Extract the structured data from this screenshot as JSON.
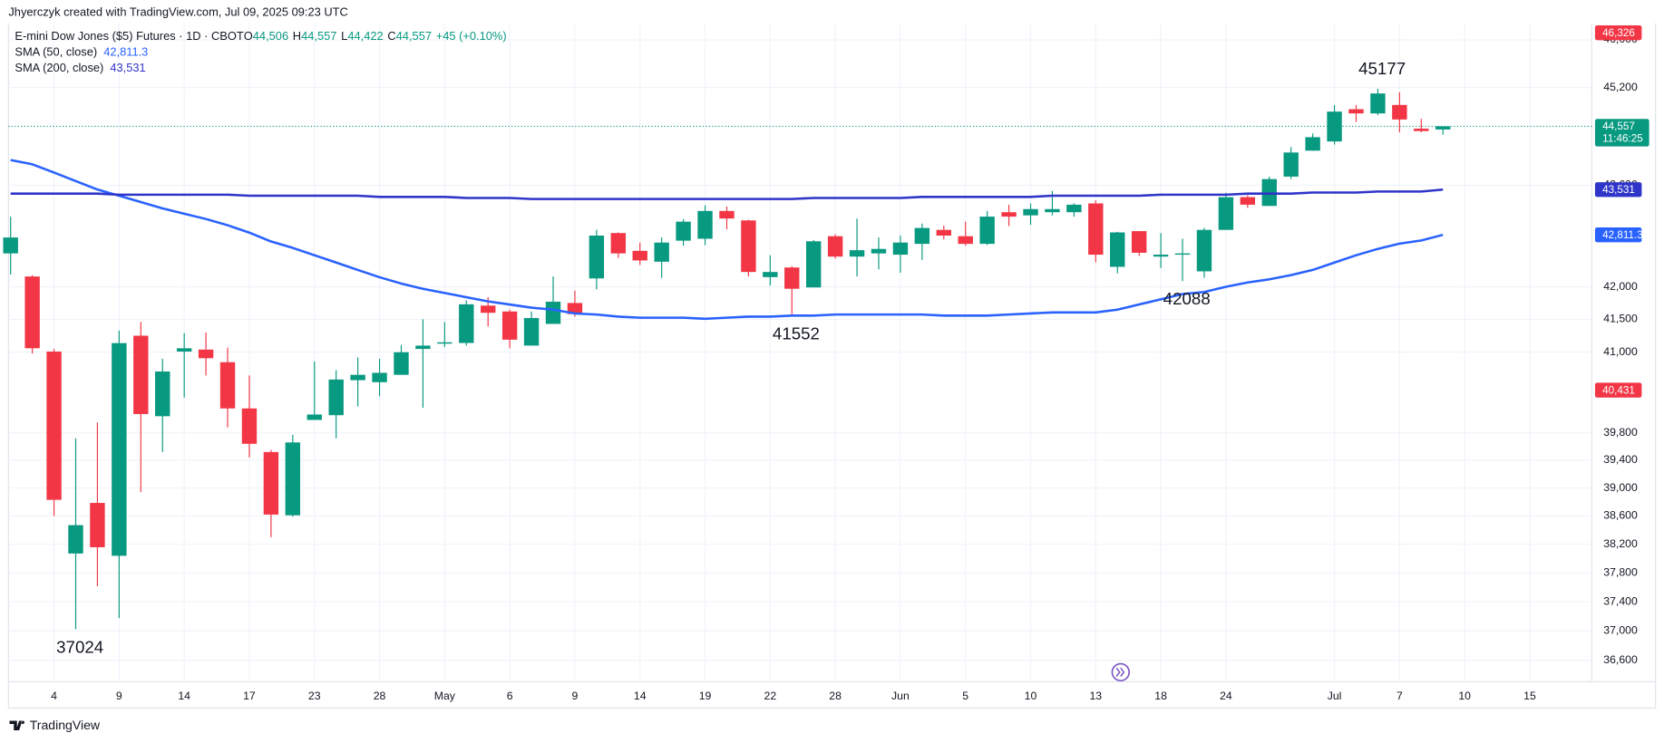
{
  "header": {
    "credit": "Jhyerczyk created with TradingView.com, Jul 09, 2025 09:23 UTC",
    "symbol": "E-mini Dow Jones ($5) Futures · 1D · CBOT",
    "ohlc": [
      {
        "key": "O",
        "value": "44,506"
      },
      {
        "key": "H",
        "value": "44,557"
      },
      {
        "key": "L",
        "value": "44,422"
      },
      {
        "key": "C",
        "value": "44,557"
      }
    ],
    "change": "+45 (+0.10%)"
  },
  "footer": {
    "brand": "TradingView"
  },
  "chart_data": {
    "type": "candlestick",
    "log_scale": true,
    "grid": true,
    "up_color": "#089981",
    "down_color": "#f23645",
    "ylim": [
      36300,
      46300
    ],
    "yticks": [
      {
        "value": 36600,
        "label": "36,600"
      },
      {
        "value": 37000,
        "label": "37,000"
      },
      {
        "value": 37400,
        "label": "37,400"
      },
      {
        "value": 37800,
        "label": "37,800"
      },
      {
        "value": 38200,
        "label": "38,200"
      },
      {
        "value": 38600,
        "label": "38,600"
      },
      {
        "value": 39000,
        "label": "39,000"
      },
      {
        "value": 39400,
        "label": "39,400"
      },
      {
        "value": 39800,
        "label": "39,800"
      },
      {
        "value": 41000,
        "label": "41,000"
      },
      {
        "value": 41500,
        "label": "41,500"
      },
      {
        "value": 42000,
        "label": "42,000"
      },
      {
        "value": 43600,
        "label": "43,600"
      },
      {
        "value": 45200,
        "label": "45,200"
      },
      {
        "value": 46000,
        "label": "46,000"
      }
    ],
    "categories": [
      null,
      null,
      "4",
      null,
      null,
      "9",
      null,
      null,
      "14",
      null,
      null,
      "17",
      null,
      null,
      "23",
      null,
      null,
      "28",
      null,
      null,
      "May",
      null,
      null,
      "6",
      null,
      null,
      "9",
      null,
      null,
      "14",
      null,
      null,
      "19",
      null,
      null,
      "22",
      null,
      null,
      "28",
      null,
      null,
      "Jun",
      null,
      null,
      "5",
      null,
      null,
      "10",
      null,
      null,
      "13",
      null,
      null,
      "18",
      null,
      null,
      "24",
      null,
      null,
      null,
      null,
      "Jul",
      null,
      null,
      "7",
      null,
      null,
      "10",
      null,
      null,
      "15"
    ],
    "open": [
      42520,
      42160,
      41010,
      38070,
      38786,
      38038,
      41250,
      40045,
      41010,
      41040,
      40850,
      40160,
      39520,
      38610,
      39990,
      40060,
      40580,
      40550,
      40660,
      41050,
      41130,
      41140,
      41710,
      41620,
      41100,
      41430,
      41750,
      42130,
      42840,
      42560,
      42390,
      42720,
      42750,
      43190,
      43040,
      42150,
      42300,
      41990,
      42790,
      42470,
      42520,
      42500,
      42670,
      42890,
      42790,
      42670,
      43170,
      43120,
      43170,
      43170,
      43310,
      42310,
      42870,
      42470,
      42500,
      42240,
      42890,
      43410,
      43270,
      43740,
      44160,
      44310,
      44840,
      44770,
      44910,
      44520,
      44506,
      null,
      null,
      null,
      null
    ],
    "high": [
      43100,
      42180,
      41050,
      39720,
      39952,
      41330,
      41460,
      40900,
      41290,
      41300,
      41070,
      40650,
      39550,
      39770,
      40860,
      40730,
      40920,
      40900,
      41110,
      41500,
      41460,
      41790,
      41840,
      41650,
      41620,
      42160,
      41940,
      42890,
      42850,
      42690,
      42770,
      43060,
      43280,
      43260,
      43050,
      42490,
      42320,
      42730,
      42820,
      43070,
      42770,
      42800,
      42990,
      42960,
      43020,
      43190,
      43290,
      43310,
      43510,
      43310,
      43360,
      42860,
      42870,
      42840,
      42750,
      42920,
      43480,
      43440,
      43740,
      44220,
      44440,
      44910,
      44910,
      45177,
      45120,
      44680,
      44557,
      null,
      null,
      null,
      null
    ],
    "low": [
      42190,
      40980,
      38600,
      37024,
      37613,
      37175,
      38940,
      39520,
      40320,
      40650,
      39880,
      39440,
      38300,
      38590,
      39990,
      39720,
      40190,
      40340,
      40660,
      40170,
      41080,
      41100,
      41390,
      41060,
      41100,
      41430,
      41540,
      41960,
      42450,
      42340,
      42140,
      42640,
      42650,
      42900,
      42160,
      42020,
      41552,
      41990,
      42440,
      42160,
      42270,
      42220,
      42420,
      42740,
      42640,
      42650,
      42950,
      42970,
      43120,
      43100,
      42380,
      42210,
      42480,
      42290,
      42088,
      42140,
      42890,
      43240,
      43270,
      43700,
      44160,
      44260,
      44630,
      44740,
      44460,
      44460,
      44422,
      null,
      null,
      null,
      null
    ],
    "close": [
      42770,
      41060,
      38830,
      38470,
      38158,
      41138,
      40077,
      40710,
      41060,
      40910,
      40160,
      39640,
      38620,
      39660,
      40070,
      40590,
      40660,
      40690,
      41000,
      41100,
      41150,
      41730,
      41600,
      41190,
      41520,
      41770,
      41580,
      42800,
      42520,
      42410,
      42690,
      43020,
      43190,
      43070,
      42230,
      42230,
      41970,
      42710,
      42470,
      42570,
      42590,
      42690,
      42920,
      42800,
      42670,
      43100,
      43100,
      43220,
      43220,
      43290,
      42500,
      42850,
      42530,
      42500,
      42520,
      42890,
      43410,
      43290,
      43700,
      44130,
      44380,
      44800,
      44770,
      45100,
      44670,
      44480,
      44557,
      null,
      null,
      null,
      null
    ],
    "series": [
      {
        "name": "SMA (50, close)",
        "color": "#2962ff",
        "value_label": "42,811.3",
        "values": [
          44008,
          43940,
          43804,
          43669,
          43533,
          43432,
          43331,
          43230,
          43146,
          43063,
          42963,
          42847,
          42707,
          42607,
          42492,
          42377,
          42262,
          42148,
          42050,
          41969,
          41904,
          41840,
          41775,
          41727,
          41679,
          41647,
          41590,
          41573,
          41541,
          41525,
          41525,
          41525,
          41509,
          41525,
          41541,
          41541,
          41557,
          41557,
          41573,
          41573,
          41573,
          41573,
          41573,
          41557,
          41557,
          41557,
          41573,
          41590,
          41605,
          41605,
          41605,
          41647,
          41727,
          41807,
          41888,
          41920,
          42001,
          42067,
          42116,
          42182,
          42262,
          42377,
          42492,
          42590,
          42674,
          42724,
          42811.3,
          null,
          null,
          null,
          null
        ]
      },
      {
        "name": "SMA (200, close)",
        "color": "#2f35c9",
        "value_label": "43,531",
        "values": [
          43466,
          43466,
          43466,
          43466,
          43466,
          43449,
          43449,
          43449,
          43449,
          43449,
          43449,
          43432,
          43432,
          43432,
          43432,
          43432,
          43432,
          43415,
          43415,
          43415,
          43415,
          43398,
          43398,
          43398,
          43381,
          43381,
          43381,
          43381,
          43381,
          43381,
          43381,
          43381,
          43381,
          43381,
          43381,
          43381,
          43381,
          43398,
          43398,
          43398,
          43398,
          43398,
          43415,
          43415,
          43415,
          43415,
          43415,
          43415,
          43432,
          43432,
          43432,
          43432,
          43432,
          43449,
          43449,
          43449,
          43449,
          43466,
          43466,
          43466,
          43483,
          43483,
          43483,
          43500,
          43500,
          43500,
          43531,
          null,
          null,
          null,
          null
        ]
      }
    ],
    "last_price": {
      "value": 44557,
      "label": "44,557",
      "countdown": "11:46:25",
      "color": "#089981"
    },
    "price_labels": [
      {
        "value": 46326,
        "label": "46,326",
        "color": "#f23645"
      },
      {
        "value": 40431,
        "label": "40,431",
        "color": "#f23645"
      }
    ],
    "annotations": [
      {
        "label": "37024",
        "value": 37024,
        "index": 3
      },
      {
        "label": "41552",
        "value": 41552,
        "index": 36
      },
      {
        "label": "42088",
        "value": 42088,
        "index": 54
      },
      {
        "label": "45177",
        "value": 45177,
        "index": 63
      }
    ]
  }
}
